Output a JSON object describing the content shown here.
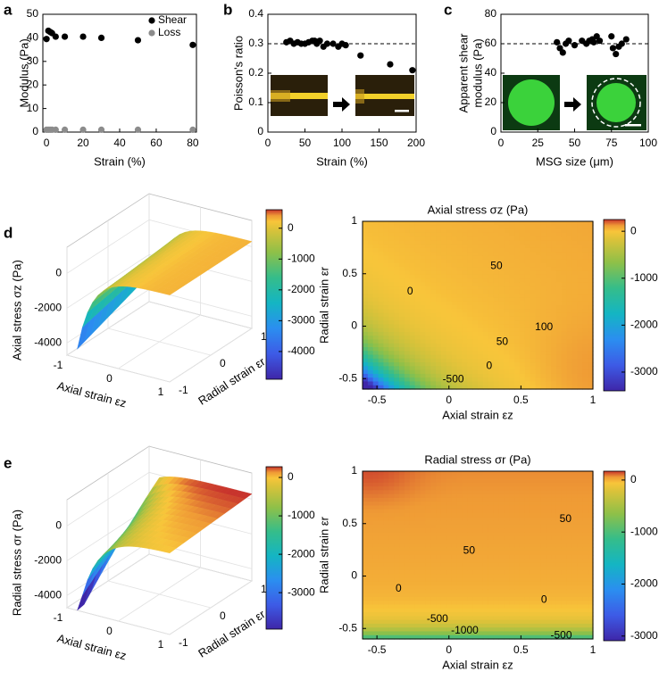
{
  "chart_data": [
    {
      "panel": "a",
      "type": "scatter",
      "xlabel": "Strain (%)",
      "ylabel": "Modulus (Pa)",
      "xlim": [
        -2,
        82
      ],
      "xticks": [
        0,
        20,
        40,
        60,
        80
      ],
      "ylim": [
        0,
        50
      ],
      "yticks": [
        0,
        10,
        20,
        30,
        40,
        50
      ],
      "legend": "upper right",
      "series": [
        {
          "name": "Shear",
          "color": "#000000",
          "x": [
            0,
            1,
            2,
            3,
            5,
            10,
            20,
            30,
            50,
            80
          ],
          "values": [
            39.5,
            43,
            42.5,
            42,
            40.5,
            40.5,
            40.5,
            40,
            39,
            37
          ]
        },
        {
          "name": "Loss",
          "color": "#8c8c8c",
          "x": [
            0,
            1,
            2,
            3,
            5,
            10,
            20,
            30,
            50,
            80
          ],
          "values": [
            1,
            1,
            1,
            1,
            1,
            1,
            1,
            1,
            1,
            1
          ]
        }
      ]
    },
    {
      "panel": "b",
      "type": "scatter",
      "xlabel": "Strain (%)",
      "ylabel": "Poisson's ratio",
      "xlim": [
        0,
        200
      ],
      "xticks": [
        0,
        50,
        100,
        150,
        200
      ],
      "ylim": [
        0,
        0.4
      ],
      "yticks": [
        0,
        0.1,
        0.2,
        0.3,
        0.4
      ],
      "reference_line": 0.3,
      "series": [
        {
          "name": null,
          "color": "#000000",
          "x": [
            25,
            30,
            35,
            40,
            45,
            50,
            55,
            60,
            63,
            66,
            70,
            75,
            80,
            88,
            95,
            100,
            105,
            125,
            165,
            195
          ],
          "values": [
            0.305,
            0.31,
            0.3,
            0.305,
            0.3,
            0.3,
            0.305,
            0.31,
            0.31,
            0.3,
            0.31,
            0.29,
            0.3,
            0.3,
            0.29,
            0.3,
            0.295,
            0.26,
            0.23,
            0.21
          ]
        }
      ]
    },
    {
      "panel": "c",
      "type": "scatter",
      "xlabel": "MSG size (μm)",
      "ylabel": [
        "Apparent shear",
        "modulus (Pa)"
      ],
      "xlim": [
        0,
        100
      ],
      "xticks": [
        0,
        25,
        50,
        75,
        100
      ],
      "ylim": [
        0,
        80
      ],
      "yticks": [
        0,
        20,
        40,
        60,
        80
      ],
      "reference_line": 60,
      "series": [
        {
          "name": null,
          "color": "#000000",
          "x": [
            38,
            40,
            42,
            44,
            46,
            50,
            55,
            58,
            60,
            62,
            63,
            65,
            67,
            75,
            76,
            78,
            80,
            82,
            85
          ],
          "values": [
            61,
            57,
            54,
            60,
            62,
            59,
            62,
            60,
            62,
            63,
            61,
            65,
            62,
            65,
            57,
            53,
            58,
            60,
            63
          ]
        }
      ]
    },
    {
      "panel": "d",
      "type": "surface",
      "zlabel": "Axial stress σz (Pa)",
      "xlabel": "Axial strain εz",
      "ylabel": "Radial strain εr",
      "xlim": [
        -1,
        1
      ],
      "xticks": [
        -1,
        0,
        1
      ],
      "ylim": [
        -1,
        1
      ],
      "yticks": [
        -1,
        0,
        1
      ],
      "zlim": [
        -4700,
        1500
      ],
      "zticks": [
        -4000,
        -2000,
        0
      ],
      "clim": [
        -4900,
        600
      ],
      "cticks": [
        -4000,
        -3000,
        -2000,
        -1000,
        0
      ]
    },
    {
      "type": "contour",
      "title": "Axial stress σz (Pa)",
      "xlabel": "Axial strain εz",
      "ylabel": "Radial strain εr",
      "xlim": [
        -0.6,
        1
      ],
      "xticks": [
        -0.5,
        0,
        0.5,
        1
      ],
      "ylim": [
        -0.6,
        1
      ],
      "yticks": [
        -0.5,
        0,
        0.5,
        1
      ],
      "clim": [
        -3400,
        250
      ],
      "cticks": [
        -3000,
        -2000,
        -1000,
        0
      ],
      "contour_labels": [
        50,
        0,
        100,
        50,
        0,
        -500
      ]
    },
    {
      "panel": "e",
      "type": "surface",
      "zlabel": "Radial stress σr (Pa)",
      "xlabel": "Axial strain εz",
      "ylabel": "Radial strain εr",
      "xlim": [
        -1,
        1
      ],
      "xticks": [
        -1,
        0,
        1
      ],
      "ylim": [
        -1,
        1
      ],
      "yticks": [
        -1,
        0,
        1
      ],
      "zlim": [
        -4700,
        1500
      ],
      "zticks": [
        -4000,
        -2000,
        0
      ],
      "clim": [
        -3950,
        280
      ],
      "cticks": [
        -3000,
        -2000,
        -1000,
        0
      ]
    },
    {
      "type": "contour",
      "title": "Radial stress σr (Pa)",
      "xlabel": "Axial strain εz",
      "ylabel": "Radial strain εr",
      "xlim": [
        -0.6,
        1
      ],
      "xticks": [
        -0.5,
        0,
        0.5,
        1
      ],
      "ylim": [
        -0.6,
        1
      ],
      "yticks": [
        -0.5,
        0,
        0.5,
        1
      ],
      "clim": [
        -3090,
        170
      ],
      "cticks": [
        -3000,
        -2000,
        -1000,
        0
      ],
      "contour_labels": [
        50,
        50,
        0,
        0,
        -500,
        -1000,
        -500
      ]
    }
  ]
}
